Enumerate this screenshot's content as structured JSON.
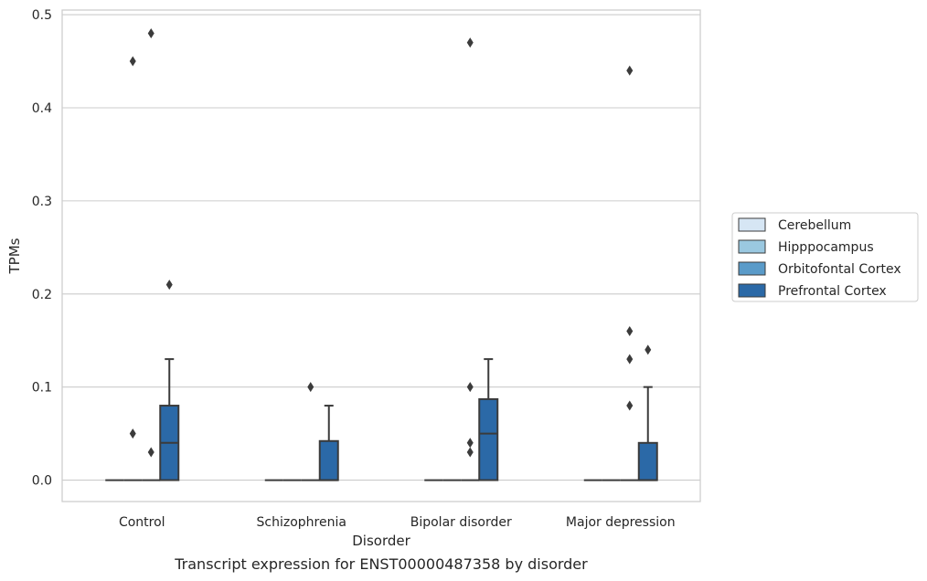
{
  "chart_data": {
    "type": "box",
    "title": "Transcript expression for ENST00000487358 by disorder",
    "xlabel": "Disorder",
    "ylabel": "TPMs",
    "ylim": [
      -0.023,
      0.505
    ],
    "yticks": [
      0.0,
      0.1,
      0.2,
      0.3,
      0.4,
      0.5
    ],
    "ytick_labels": [
      "0.0",
      "0.1",
      "0.2",
      "0.3",
      "0.4",
      "0.5"
    ],
    "grid": "horizontal",
    "legend_placement": "right",
    "categories": [
      "Control",
      "Schizophrenia",
      "Bipolar disorder",
      "Major depression"
    ],
    "series": [
      {
        "name": "Cerebellum",
        "color": "#d6e6f4",
        "boxes": [
          {
            "q1": 0,
            "median": 0,
            "q3": 0,
            "whisker_low": 0,
            "whisker_high": 0,
            "outliers": []
          },
          {
            "q1": 0,
            "median": 0,
            "q3": 0,
            "whisker_low": 0,
            "whisker_high": 0,
            "outliers": []
          },
          {
            "q1": 0,
            "median": 0,
            "q3": 0,
            "whisker_low": 0,
            "whisker_high": 0,
            "outliers": []
          },
          {
            "q1": 0,
            "median": 0,
            "q3": 0,
            "whisker_low": 0,
            "whisker_high": 0,
            "outliers": []
          }
        ]
      },
      {
        "name": "Hipppocampus",
        "color": "#9ac8e0",
        "boxes": [
          {
            "q1": 0,
            "median": 0,
            "q3": 0,
            "whisker_low": 0,
            "whisker_high": 0,
            "outliers": [
              0.05,
              0.45
            ]
          },
          {
            "q1": 0,
            "median": 0,
            "q3": 0,
            "whisker_low": 0,
            "whisker_high": 0,
            "outliers": []
          },
          {
            "q1": 0,
            "median": 0,
            "q3": 0,
            "whisker_low": 0,
            "whisker_high": 0,
            "outliers": []
          },
          {
            "q1": 0,
            "median": 0,
            "q3": 0,
            "whisker_low": 0,
            "whisker_high": 0,
            "outliers": []
          }
        ]
      },
      {
        "name": "Orbitofontal Cortex",
        "color": "#5a9bc9",
        "boxes": [
          {
            "q1": 0,
            "median": 0,
            "q3": 0,
            "whisker_low": 0,
            "whisker_high": 0,
            "outliers": [
              0.03,
              0.48
            ]
          },
          {
            "q1": 0,
            "median": 0,
            "q3": 0,
            "whisker_low": 0,
            "whisker_high": 0,
            "outliers": [
              0.1
            ]
          },
          {
            "q1": 0,
            "median": 0,
            "q3": 0,
            "whisker_low": 0,
            "whisker_high": 0,
            "outliers": [
              0.03,
              0.04,
              0.1,
              0.47
            ]
          },
          {
            "q1": 0,
            "median": 0,
            "q3": 0,
            "whisker_low": 0,
            "whisker_high": 0,
            "outliers": [
              0.08,
              0.13,
              0.16,
              0.44
            ]
          }
        ]
      },
      {
        "name": "Prefrontal Cortex",
        "color": "#2b69a7",
        "boxes": [
          {
            "q1": 0,
            "median": 0.04,
            "q3": 0.08,
            "whisker_low": 0,
            "whisker_high": 0.13,
            "outliers": [
              0.21
            ]
          },
          {
            "q1": 0,
            "median": 0,
            "q3": 0.042,
            "whisker_low": 0,
            "whisker_high": 0.08,
            "outliers": []
          },
          {
            "q1": 0,
            "median": 0.05,
            "q3": 0.087,
            "whisker_low": 0,
            "whisker_high": 0.13,
            "outliers": []
          },
          {
            "q1": 0,
            "median": 0,
            "q3": 0.04,
            "whisker_low": 0,
            "whisker_high": 0.1,
            "outliers": [
              0.14
            ]
          }
        ]
      }
    ]
  }
}
